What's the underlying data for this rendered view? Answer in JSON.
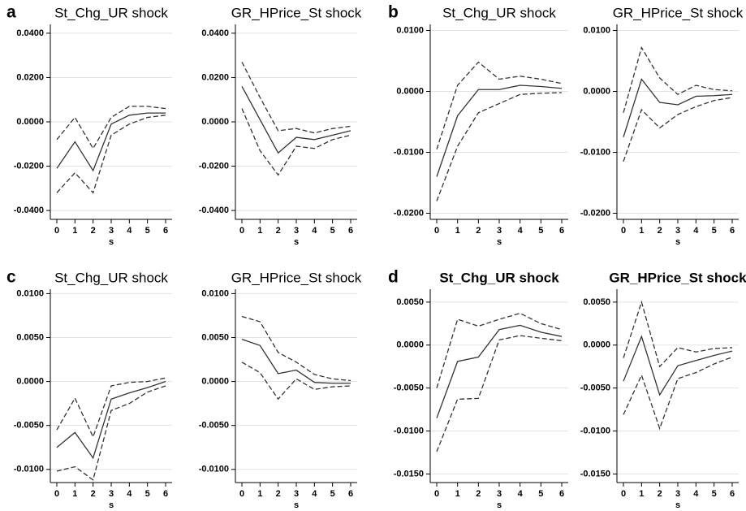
{
  "chart_data": [
    {
      "type": "line",
      "panel": "a",
      "title": "St_Chg_UR shock",
      "xlabel": "s",
      "x": [
        0,
        1,
        2,
        3,
        4,
        5,
        6
      ],
      "xlim": [
        0,
        6
      ],
      "xticks": [
        0,
        1,
        2,
        3,
        4,
        5,
        6
      ],
      "ylim": [
        -0.044,
        0.044
      ],
      "yticks": [
        {
          "value": -0.04,
          "label": "-0.0400"
        },
        {
          "value": -0.02,
          "label": "-0.0200"
        },
        {
          "value": 0,
          "label": "0.0000"
        },
        {
          "value": 0.02,
          "label": "0.0200"
        },
        {
          "value": 0.04,
          "label": "0.0400"
        }
      ],
      "grid": true,
      "series": [
        {
          "style": "solid",
          "color": "#333333",
          "values": [
            -0.021,
            -0.009,
            -0.022,
            -0.001,
            0.003,
            0.004,
            0.004
          ]
        },
        {
          "style": "dashed",
          "color": "#333333",
          "values": [
            -0.032,
            -0.023,
            -0.032,
            -0.006,
            -0.001,
            0.002,
            0.003
          ]
        },
        {
          "style": "dashed",
          "color": "#333333",
          "values": [
            -0.008,
            0.002,
            -0.012,
            0.002,
            0.007,
            0.007,
            0.006
          ]
        }
      ]
    },
    {
      "type": "line",
      "title": "GR_HPrice_St shock",
      "xlabel": "s",
      "x": [
        0,
        1,
        2,
        3,
        4,
        5,
        6
      ],
      "xlim": [
        0,
        6
      ],
      "xticks": [
        0,
        1,
        2,
        3,
        4,
        5,
        6
      ],
      "ylim": [
        -0.044,
        0.044
      ],
      "yticks": [
        {
          "value": -0.04,
          "label": "-0.0400"
        },
        {
          "value": -0.02,
          "label": "-0.0200"
        },
        {
          "value": 0,
          "label": "0.0000"
        },
        {
          "value": 0.02,
          "label": "0.0200"
        },
        {
          "value": 0.04,
          "label": "0.0400"
        }
      ],
      "grid": true,
      "series": [
        {
          "style": "solid",
          "color": "#333333",
          "values": [
            0.016,
            0.001,
            -0.014,
            -0.007,
            -0.008,
            -0.006,
            -0.004
          ]
        },
        {
          "style": "dashed",
          "color": "#333333",
          "values": [
            0.027,
            0.011,
            -0.004,
            -0.003,
            -0.005,
            -0.003,
            -0.002
          ]
        },
        {
          "style": "dashed",
          "color": "#333333",
          "values": [
            0.006,
            -0.013,
            -0.024,
            -0.011,
            -0.012,
            -0.008,
            -0.006
          ]
        }
      ]
    },
    {
      "type": "line",
      "panel": "b",
      "title": "St_Chg_UR shock",
      "xlabel": "s",
      "x": [
        0,
        1,
        2,
        3,
        4,
        5,
        6
      ],
      "xlim": [
        0,
        6
      ],
      "xticks": [
        0,
        1,
        2,
        3,
        4,
        5,
        6
      ],
      "ylim": [
        -0.021,
        0.011
      ],
      "yticks": [
        {
          "value": -0.02,
          "label": "-0.0200"
        },
        {
          "value": -0.01,
          "label": "-0.0100"
        },
        {
          "value": 0,
          "label": "0.0000"
        },
        {
          "value": 0.01,
          "label": "0.0100"
        }
      ],
      "grid": true,
      "series": [
        {
          "style": "solid",
          "color": "#333333",
          "values": [
            -0.014,
            -0.004,
            0.0003,
            0.0003,
            0.001,
            0.0008,
            0.0005
          ]
        },
        {
          "style": "dashed",
          "color": "#333333",
          "values": [
            -0.0095,
            0.001,
            0.0048,
            0.002,
            0.0025,
            0.002,
            0.0013
          ]
        },
        {
          "style": "dashed",
          "color": "#333333",
          "values": [
            -0.018,
            -0.009,
            -0.0035,
            -0.002,
            -0.0005,
            -0.0003,
            -0.0002
          ]
        }
      ]
    },
    {
      "type": "line",
      "title": "GR_HPrice_St shock",
      "xlabel": "s",
      "x": [
        0,
        1,
        2,
        3,
        4,
        5,
        6
      ],
      "xlim": [
        0,
        6
      ],
      "xticks": [
        0,
        1,
        2,
        3,
        4,
        5,
        6
      ],
      "ylim": [
        -0.021,
        0.011
      ],
      "yticks": [
        {
          "value": -0.02,
          "label": "-0.0200"
        },
        {
          "value": -0.01,
          "label": "-0.0100"
        },
        {
          "value": 0,
          "label": "0.0000"
        },
        {
          "value": 0.01,
          "label": "0.0100"
        }
      ],
      "grid": true,
      "series": [
        {
          "style": "solid",
          "color": "#333333",
          "values": [
            -0.0075,
            0.002,
            -0.0018,
            -0.0022,
            -0.0008,
            -0.0007,
            -0.0005
          ]
        },
        {
          "style": "dashed",
          "color": "#333333",
          "values": [
            -0.0035,
            0.0072,
            0.0022,
            -0.0005,
            0.001,
            0.0003,
            0.0001
          ]
        },
        {
          "style": "dashed",
          "color": "#333333",
          "values": [
            -0.0115,
            -0.003,
            -0.006,
            -0.0038,
            -0.0025,
            -0.0015,
            -0.001
          ]
        }
      ]
    },
    {
      "type": "line",
      "panel": "c",
      "title": "St_Chg_UR shock",
      "xlabel": "s",
      "x": [
        0,
        1,
        2,
        3,
        4,
        5,
        6
      ],
      "xlim": [
        0,
        6
      ],
      "xticks": [
        0,
        1,
        2,
        3,
        4,
        5,
        6
      ],
      "ylim": [
        -0.0115,
        0.0105
      ],
      "yticks": [
        {
          "value": -0.01,
          "label": "-0.0100"
        },
        {
          "value": -0.005,
          "label": "-0.0050"
        },
        {
          "value": 0,
          "label": "0.0000"
        },
        {
          "value": 0.005,
          "label": "0.0050"
        },
        {
          "value": 0.01,
          "label": "0.0100"
        }
      ],
      "grid": true,
      "series": [
        {
          "style": "solid",
          "color": "#333333",
          "values": [
            -0.0075,
            -0.0058,
            -0.0087,
            -0.002,
            -0.0013,
            -0.0007,
            0
          ]
        },
        {
          "style": "dashed",
          "color": "#333333",
          "values": [
            -0.0055,
            -0.0019,
            -0.0063,
            -0.0005,
            -0.0001,
            0,
            0.0004
          ]
        },
        {
          "style": "dashed",
          "color": "#333333",
          "values": [
            -0.0102,
            -0.0097,
            -0.0112,
            -0.0033,
            -0.0025,
            -0.0012,
            -0.0005
          ]
        }
      ]
    },
    {
      "type": "line",
      "title": "GR_HPrice_St shock",
      "xlabel": "s",
      "x": [
        0,
        1,
        2,
        3,
        4,
        5,
        6
      ],
      "xlim": [
        0,
        6
      ],
      "xticks": [
        0,
        1,
        2,
        3,
        4,
        5,
        6
      ],
      "ylim": [
        -0.0115,
        0.0105
      ],
      "yticks": [
        {
          "value": -0.01,
          "label": "-0.0100"
        },
        {
          "value": -0.005,
          "label": "-0.0050"
        },
        {
          "value": 0,
          "label": "0.0000"
        },
        {
          "value": 0.005,
          "label": "0.0050"
        },
        {
          "value": 0.01,
          "label": "0.0100"
        }
      ],
      "grid": true,
      "series": [
        {
          "style": "solid",
          "color": "#333333",
          "values": [
            0.0048,
            0.0041,
            0.0009,
            0.0013,
            -0.0001,
            -0.0002,
            -0.0002
          ]
        },
        {
          "style": "dashed",
          "color": "#333333",
          "values": [
            0.0074,
            0.0068,
            0.0033,
            0.0022,
            0.0008,
            0.0003,
            0.0001
          ]
        },
        {
          "style": "dashed",
          "color": "#333333",
          "values": [
            0.0022,
            0.001,
            -0.002,
            0.0003,
            -0.0009,
            -0.0006,
            -0.0005
          ]
        }
      ]
    },
    {
      "type": "line",
      "panel": "d",
      "title": "St_Chg_UR shock",
      "title_bold": true,
      "xlabel": "s",
      "x": [
        0,
        1,
        2,
        3,
        4,
        5,
        6
      ],
      "xlim": [
        0,
        6
      ],
      "xticks": [
        0,
        1,
        2,
        3,
        4,
        5,
        6
      ],
      "ylim": [
        -0.016,
        0.0065
      ],
      "yticks": [
        {
          "value": -0.015,
          "label": "-0.0150"
        },
        {
          "value": -0.01,
          "label": "-0.0100"
        },
        {
          "value": -0.005,
          "label": "-0.0050"
        },
        {
          "value": 0,
          "label": "0.0000"
        },
        {
          "value": 0.005,
          "label": "0.0050"
        }
      ],
      "grid": true,
      "series": [
        {
          "style": "solid",
          "color": "#333333",
          "values": [
            -0.0085,
            -0.0019,
            -0.0014,
            0.0018,
            0.0023,
            0.0015,
            0.001
          ]
        },
        {
          "style": "dashed",
          "color": "#333333",
          "values": [
            -0.005,
            0.003,
            0.0022,
            0.003,
            0.0037,
            0.0025,
            0.0018
          ]
        },
        {
          "style": "dashed",
          "color": "#333333",
          "values": [
            -0.0124,
            -0.0063,
            -0.0062,
            0.0006,
            0.0011,
            0.0008,
            0.0005
          ]
        }
      ]
    },
    {
      "type": "line",
      "title": "GR_HPrice_St shock",
      "title_bold": true,
      "xlabel": "s",
      "x": [
        0,
        1,
        2,
        3,
        4,
        5,
        6
      ],
      "xlim": [
        0,
        6
      ],
      "xticks": [
        0,
        1,
        2,
        3,
        4,
        5,
        6
      ],
      "ylim": [
        -0.016,
        0.0065
      ],
      "yticks": [
        {
          "value": -0.015,
          "label": "-0.0150"
        },
        {
          "value": -0.01,
          "label": "-0.0100"
        },
        {
          "value": -0.005,
          "label": "-0.0050"
        },
        {
          "value": 0,
          "label": "0.0000"
        },
        {
          "value": 0.005,
          "label": "0.0050"
        }
      ],
      "grid": true,
      "series": [
        {
          "style": "solid",
          "color": "#333333",
          "values": [
            -0.0042,
            0.001,
            -0.0058,
            -0.0024,
            -0.0018,
            -0.0012,
            -0.0007
          ]
        },
        {
          "style": "dashed",
          "color": "#333333",
          "values": [
            -0.0015,
            0.005,
            -0.0025,
            -0.0003,
            -0.0008,
            -0.0004,
            -0.0003
          ]
        },
        {
          "style": "dashed",
          "color": "#333333",
          "values": [
            -0.0081,
            -0.0035,
            -0.0097,
            -0.0039,
            -0.0032,
            -0.0022,
            -0.0014
          ]
        }
      ]
    }
  ]
}
